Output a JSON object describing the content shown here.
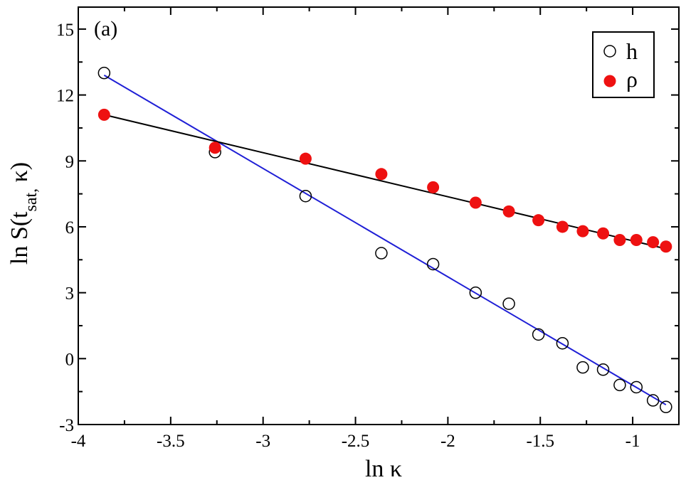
{
  "chart_data": {
    "type": "scatter",
    "panel_label": "(a)",
    "xlabel": "ln κ",
    "ylabel_main": "ln S(t",
    "ylabel_sub": "sat,",
    "ylabel_tail": " κ)",
    "xlim": [
      -4,
      -0.75
    ],
    "ylim": [
      -3,
      16
    ],
    "xticks": [
      -4,
      -3.5,
      -3,
      -2.5,
      -2,
      -1.5,
      -1
    ],
    "xtick_labels": [
      "-4",
      "-3.5",
      "-3",
      "-2.5",
      "-2",
      "-1.5",
      "-1"
    ],
    "yticks": [
      -3,
      0,
      3,
      6,
      9,
      12,
      15
    ],
    "ytick_labels": [
      "-3",
      "0",
      "3",
      "6",
      "9",
      "12",
      "15"
    ],
    "legend_position": "top-right",
    "series": [
      {
        "name": "h",
        "marker": "open-circle",
        "color": "#000000",
        "x": [
          -3.86,
          -3.26,
          -2.77,
          -2.36,
          -2.08,
          -1.85,
          -1.67,
          -1.51,
          -1.38,
          -1.27,
          -1.16,
          -1.07,
          -0.98,
          -0.89,
          -0.82
        ],
        "y": [
          13.0,
          9.4,
          7.4,
          4.8,
          4.3,
          3.0,
          2.5,
          1.1,
          0.7,
          -0.4,
          -0.5,
          -1.2,
          -1.3,
          -1.9,
          -2.2
        ],
        "fit": {
          "x": [
            -3.86,
            -0.82
          ],
          "y": [
            12.9,
            -2.1
          ],
          "color": "#1f1fd6"
        }
      },
      {
        "name": "ρ",
        "marker": "filled-circle",
        "color": "#ee1111",
        "x": [
          -3.86,
          -3.26,
          -2.77,
          -2.36,
          -2.08,
          -1.85,
          -1.67,
          -1.51,
          -1.38,
          -1.27,
          -1.16,
          -1.07,
          -0.98,
          -0.89,
          -0.82
        ],
        "y": [
          11.1,
          9.6,
          9.1,
          8.4,
          7.8,
          7.1,
          6.7,
          6.3,
          6.0,
          5.8,
          5.7,
          5.4,
          5.4,
          5.3,
          5.1
        ],
        "fit": {
          "x": [
            -3.86,
            -0.82
          ],
          "y": [
            11.1,
            5.0
          ],
          "color": "#000000"
        }
      }
    ]
  }
}
